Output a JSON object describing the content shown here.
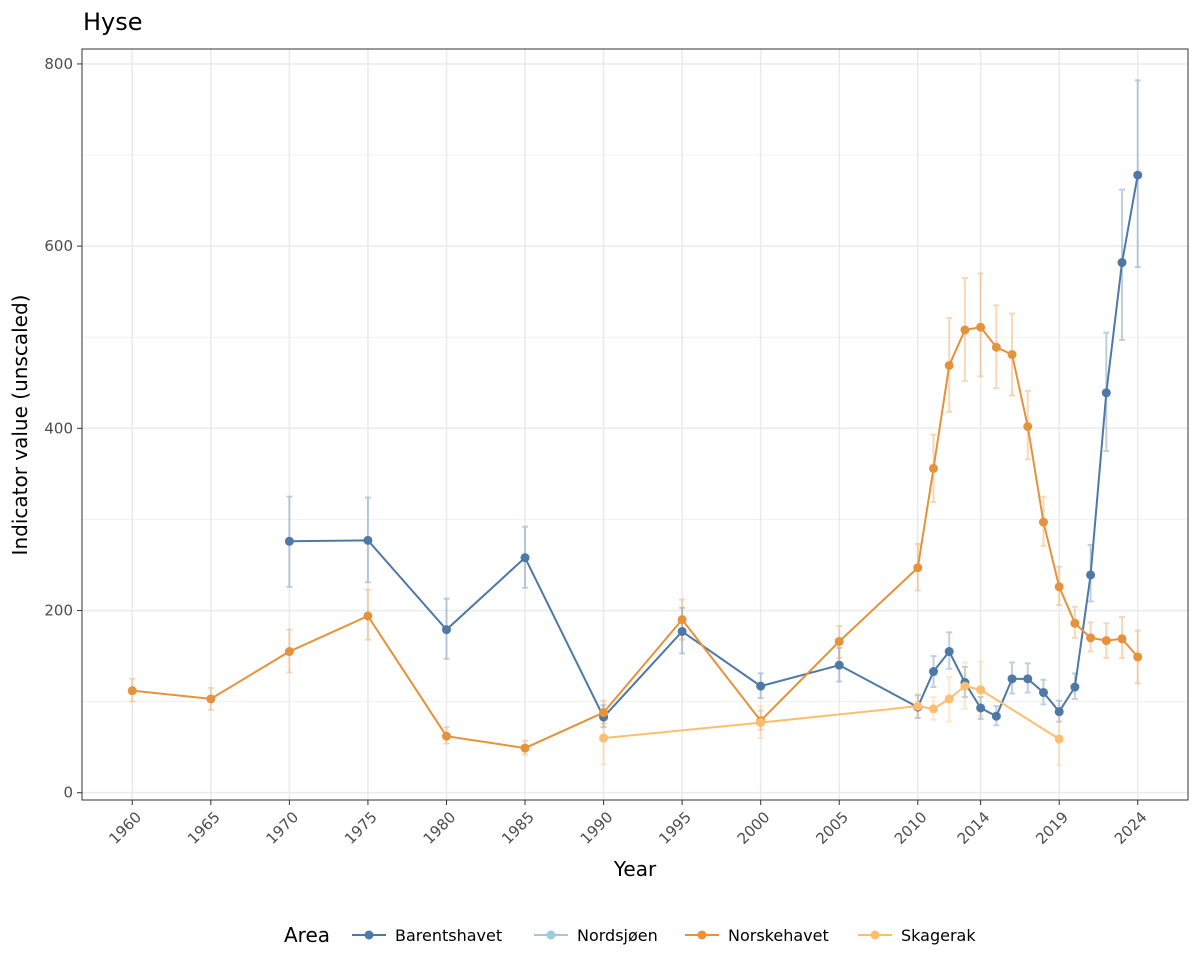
{
  "chart_data": {
    "type": "line",
    "title": "Hyse",
    "xlabel": "Year",
    "ylabel": "Indicator value (unscaled)",
    "ylim": [
      0,
      800
    ],
    "xlim": [
      1960,
      2024
    ],
    "x_ticks": [
      "1960",
      "1965",
      "1970",
      "1975",
      "1980",
      "1985",
      "1990",
      "1995",
      "2000",
      "2005",
      "2010",
      "2014",
      "2019",
      "2024"
    ],
    "y_ticks": [
      "0",
      "200",
      "400",
      "600",
      "800"
    ],
    "grid": true,
    "legend": {
      "title": "Area",
      "position": "bottom",
      "entries": [
        "Barentshavet",
        "Nordsjøen",
        "Norskehavet",
        "Skagerak"
      ]
    },
    "series": [
      {
        "name": "Barentshavet",
        "color": "#4e79a7",
        "points": [
          {
            "x": 1970,
            "y": 276,
            "lo": 226,
            "hi": 325
          },
          {
            "x": 1975,
            "y": 277,
            "lo": 231,
            "hi": 324
          },
          {
            "x": 1980,
            "y": 179,
            "lo": 147,
            "hi": 213
          },
          {
            "x": 1985,
            "y": 258,
            "lo": 225,
            "hi": 292
          },
          {
            "x": 1990,
            "y": 83,
            "lo": 72,
            "hi": 96
          },
          {
            "x": 1995,
            "y": 177,
            "lo": 153,
            "hi": 203
          },
          {
            "x": 2000,
            "y": 117,
            "lo": 104,
            "hi": 131
          },
          {
            "x": 2005,
            "y": 140,
            "lo": 122,
            "hi": 159
          },
          {
            "x": 2010,
            "y": 94,
            "lo": 82,
            "hi": 107
          },
          {
            "x": 2011,
            "y": 133,
            "lo": 116,
            "hi": 150
          },
          {
            "x": 2012,
            "y": 155,
            "lo": 136,
            "hi": 176
          },
          {
            "x": 2013,
            "y": 121,
            "lo": 105,
            "hi": 138
          },
          {
            "x": 2014,
            "y": 93,
            "lo": 81,
            "hi": 105
          },
          {
            "x": 2015,
            "y": 84,
            "lo": 74,
            "hi": 95
          },
          {
            "x": 2016,
            "y": 125,
            "lo": 109,
            "hi": 143
          },
          {
            "x": 2017,
            "y": 125,
            "lo": 110,
            "hi": 142
          },
          {
            "x": 2018,
            "y": 110,
            "lo": 97,
            "hi": 124
          },
          {
            "x": 2019,
            "y": 89,
            "lo": 78,
            "hi": 101
          },
          {
            "x": 2020,
            "y": 116,
            "lo": 103,
            "hi": 131
          },
          {
            "x": 2021,
            "y": 239,
            "lo": 210,
            "hi": 272
          },
          {
            "x": 2022,
            "y": 439,
            "lo": 375,
            "hi": 505
          },
          {
            "x": 2023,
            "y": 582,
            "lo": 497,
            "hi": 662
          },
          {
            "x": 2024,
            "y": 678,
            "lo": 577,
            "hi": 782
          }
        ]
      },
      {
        "name": "Nordsjøen",
        "color": "#9ecae1",
        "points": []
      },
      {
        "name": "Norskehavet",
        "color": "#e6923a",
        "points": [
          {
            "x": 1960,
            "y": 112,
            "lo": 100,
            "hi": 125
          },
          {
            "x": 1965,
            "y": 103,
            "lo": 91,
            "hi": 115
          },
          {
            "x": 1970,
            "y": 155,
            "lo": 132,
            "hi": 179
          },
          {
            "x": 1975,
            "y": 194,
            "lo": 168,
            "hi": 223
          },
          {
            "x": 1980,
            "y": 62,
            "lo": 54,
            "hi": 72
          },
          {
            "x": 1985,
            "y": 49,
            "lo": 42,
            "hi": 57
          },
          {
            "x": 1990,
            "y": 88,
            "lo": 76,
            "hi": 101
          },
          {
            "x": 1995,
            "y": 190,
            "lo": 168,
            "hi": 212
          },
          {
            "x": 2000,
            "y": 79,
            "lo": 69,
            "hi": 90
          },
          {
            "x": 2005,
            "y": 166,
            "lo": 148,
            "hi": 183
          },
          {
            "x": 2010,
            "y": 247,
            "lo": 222,
            "hi": 273
          },
          {
            "x": 2011,
            "y": 356,
            "lo": 319,
            "hi": 393
          },
          {
            "x": 2012,
            "y": 469,
            "lo": 418,
            "hi": 521
          },
          {
            "x": 2013,
            "y": 508,
            "lo": 452,
            "hi": 565
          },
          {
            "x": 2014,
            "y": 511,
            "lo": 457,
            "hi": 570
          },
          {
            "x": 2015,
            "y": 489,
            "lo": 444,
            "hi": 535
          },
          {
            "x": 2016,
            "y": 481,
            "lo": 436,
            "hi": 526
          },
          {
            "x": 2017,
            "y": 402,
            "lo": 366,
            "hi": 441
          },
          {
            "x": 2018,
            "y": 297,
            "lo": 271,
            "hi": 325
          },
          {
            "x": 2019,
            "y": 226,
            "lo": 206,
            "hi": 248
          },
          {
            "x": 2020,
            "y": 186,
            "lo": 170,
            "hi": 204
          },
          {
            "x": 2021,
            "y": 170,
            "lo": 155,
            "hi": 187
          },
          {
            "x": 2022,
            "y": 167,
            "lo": 148,
            "hi": 186
          },
          {
            "x": 2023,
            "y": 169,
            "lo": 148,
            "hi": 193
          },
          {
            "x": 2024,
            "y": 149,
            "lo": 120,
            "hi": 178
          }
        ]
      },
      {
        "name": "Skagerak",
        "color": "#fdbf6f",
        "points": [
          {
            "x": 1990,
            "y": 60,
            "lo": 31,
            "hi": 90
          },
          {
            "x": 2000,
            "y": 77,
            "lo": 60,
            "hi": 95
          },
          {
            "x": 2010,
            "y": 95,
            "lo": 82,
            "hi": 108
          },
          {
            "x": 2011,
            "y": 92,
            "lo": 80,
            "hi": 105
          },
          {
            "x": 2012,
            "y": 103,
            "lo": 78,
            "hi": 127
          },
          {
            "x": 2013,
            "y": 117,
            "lo": 92,
            "hi": 143
          },
          {
            "x": 2014,
            "y": 113,
            "lo": 84,
            "hi": 144
          },
          {
            "x": 2019,
            "y": 59,
            "lo": 30,
            "hi": 90
          }
        ]
      }
    ]
  }
}
